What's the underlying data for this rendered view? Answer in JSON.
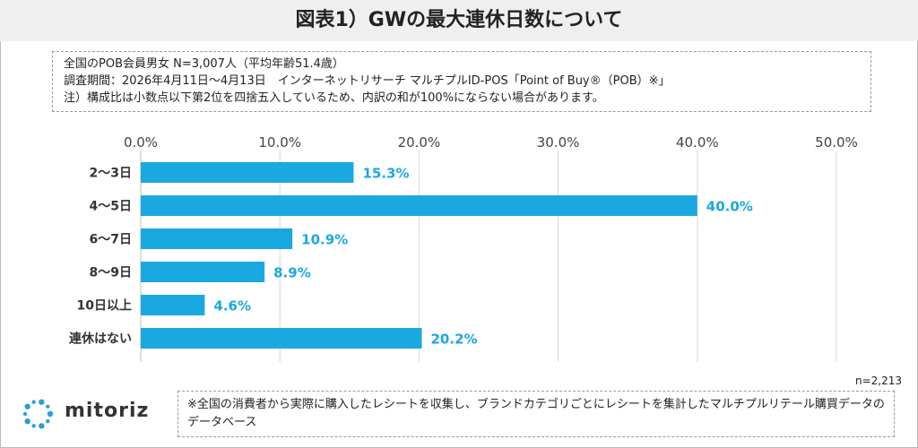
{
  "title": "図表1）GWの最大連休日数について",
  "notes": [
    "全国のPOB会員男女 N=3,007人（平均年齢51.4歳）",
    "調査期間：2026年4月11日〜4月13日　インターネットリサーチ マルチプルID-POS「Point of Buy®（POB）※」",
    "注）構成比は小数点以下第2位を四捨五入しているため、内訳の和が100%にならない場合があります。"
  ],
  "sample_size": "n=2,213",
  "logo": {
    "name": "mitoriz",
    "color": "#2a9fd6"
  },
  "footnote": "※全国の消費者から実際に購入したレシートを収集し、ブランドカテゴリごとにレシートを集計したマルチプルリテール購買データのデータベース",
  "chart_data": {
    "type": "bar",
    "orientation": "horizontal",
    "categories": [
      "2〜3日",
      "4〜5日",
      "6〜7日",
      "8〜9日",
      "10日以上",
      "連休はない"
    ],
    "values": [
      15.3,
      40.0,
      10.9,
      8.9,
      4.6,
      20.2
    ],
    "value_labels": [
      "15.3%",
      "40.0%",
      "10.9%",
      "8.9%",
      "4.6%",
      "20.2%"
    ],
    "xlim": [
      0,
      50
    ],
    "ticks": [
      0,
      10,
      20,
      30,
      40,
      50
    ],
    "tick_labels": [
      "0.0%",
      "10.0%",
      "20.0%",
      "30.0%",
      "40.0%",
      "50.0%"
    ],
    "axis_position": "top",
    "grid": true,
    "bar_color": "#1aa8e0",
    "label_color": "#1aa8e0"
  }
}
